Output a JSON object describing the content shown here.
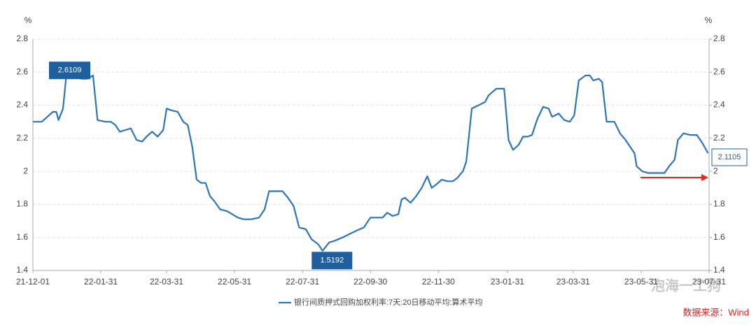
{
  "chart_data": {
    "type": "line",
    "y_unit": "%",
    "y2_unit": "%",
    "watermark": "泡海一工狗",
    "source": "数据来源：Wind",
    "x": [
      "2021-12-01",
      "2021-12-09",
      "2021-12-14",
      "2021-12-19",
      "2021-12-22",
      "2021-12-24",
      "2021-12-28",
      "2021-12-31",
      "2022-01-03",
      "2022-01-06",
      "2022-01-13",
      "2022-01-19",
      "2022-01-24",
      "2022-01-28",
      "2022-02-04",
      "2022-02-09",
      "2022-02-13",
      "2022-02-17",
      "2022-02-22",
      "2022-02-27",
      "2022-03-04",
      "2022-03-09",
      "2022-03-13",
      "2022-03-18",
      "2022-03-23",
      "2022-03-28",
      "2022-03-31",
      "2022-04-04",
      "2022-04-10",
      "2022-04-15",
      "2022-04-19",
      "2022-04-23",
      "2022-04-27",
      "2022-05-01",
      "2022-05-05",
      "2022-05-09",
      "2022-05-14",
      "2022-05-18",
      "2022-05-24",
      "2022-05-29",
      "2022-06-03",
      "2022-06-08",
      "2022-06-15",
      "2022-06-22",
      "2022-06-27",
      "2022-07-01",
      "2022-07-07",
      "2022-07-13",
      "2022-07-18",
      "2022-07-23",
      "2022-07-28",
      "2022-08-03",
      "2022-08-08",
      "2022-08-14",
      "2022-08-18",
      "2022-08-24",
      "2022-08-29",
      "2022-09-05",
      "2022-09-11",
      "2022-09-17",
      "2022-09-24",
      "2022-09-30",
      "2022-10-06",
      "2022-10-11",
      "2022-10-15",
      "2022-10-20",
      "2022-10-25",
      "2022-10-28",
      "2022-10-31",
      "2022-11-05",
      "2022-11-10",
      "2022-11-15",
      "2022-11-20",
      "2022-11-24",
      "2022-11-28",
      "2022-12-03",
      "2022-12-08",
      "2022-12-13",
      "2022-12-17",
      "2022-12-22",
      "2022-12-25",
      "2022-12-30",
      "2023-01-05",
      "2023-01-11",
      "2023-01-14",
      "2023-01-21",
      "2023-01-28",
      "2023-02-01",
      "2023-02-05",
      "2023-02-10",
      "2023-02-14",
      "2023-02-18",
      "2023-02-22",
      "2023-02-27",
      "2023-03-04",
      "2023-03-09",
      "2023-03-12",
      "2023-03-18",
      "2023-03-23",
      "2023-03-28",
      "2023-04-01",
      "2023-04-05",
      "2023-04-11",
      "2023-04-15",
      "2023-04-18",
      "2023-04-23",
      "2023-04-26",
      "2023-04-30",
      "2023-05-07",
      "2023-05-12",
      "2023-05-17",
      "2023-05-21",
      "2023-05-25",
      "2023-05-27",
      "2023-06-01",
      "2023-06-06",
      "2023-06-13",
      "2023-06-17",
      "2023-06-21",
      "2023-06-25",
      "2023-06-30",
      "2023-07-03",
      "2023-07-08",
      "2023-07-14",
      "2023-07-20",
      "2023-07-25",
      "2023-07-30"
    ],
    "series": [
      {
        "name": "银行间质押式回购加权利率:7天:20日移动平均:算术平均",
        "color": "#2e75b6",
        "values": [
          2.3,
          2.3,
          2.33,
          2.36,
          2.36,
          2.31,
          2.38,
          2.58,
          2.6109,
          2.61,
          2.56,
          2.56,
          2.58,
          2.31,
          2.3,
          2.3,
          2.28,
          2.24,
          2.25,
          2.26,
          2.19,
          2.18,
          2.21,
          2.24,
          2.21,
          2.25,
          2.38,
          2.37,
          2.36,
          2.3,
          2.28,
          2.15,
          1.95,
          1.93,
          1.93,
          1.85,
          1.81,
          1.77,
          1.76,
          1.74,
          1.72,
          1.71,
          1.71,
          1.72,
          1.77,
          1.88,
          1.88,
          1.88,
          1.84,
          1.79,
          1.66,
          1.65,
          1.59,
          1.56,
          1.5192,
          1.57,
          1.58,
          1.6,
          1.62,
          1.64,
          1.66,
          1.72,
          1.72,
          1.72,
          1.75,
          1.73,
          1.74,
          1.83,
          1.84,
          1.81,
          1.85,
          1.9,
          1.97,
          1.9,
          1.92,
          1.95,
          1.94,
          1.94,
          1.96,
          2.0,
          2.06,
          2.38,
          2.4,
          2.42,
          2.46,
          2.5,
          2.5,
          2.19,
          2.13,
          2.16,
          2.21,
          2.21,
          2.22,
          2.32,
          2.39,
          2.38,
          2.33,
          2.35,
          2.31,
          2.3,
          2.34,
          2.55,
          2.58,
          2.58,
          2.55,
          2.56,
          2.54,
          2.3,
          2.3,
          2.23,
          2.19,
          2.15,
          2.11,
          2.03,
          2.0,
          1.99,
          1.99,
          1.99,
          1.99,
          2.03,
          2.07,
          2.19,
          2.23,
          2.22,
          2.22,
          2.17,
          2.1105
        ]
      }
    ],
    "xlim": [
      "2021-12-01",
      "2023-07-31"
    ],
    "xticks": [
      {
        "value": "2021-12-01",
        "label": "21-12-01"
      },
      {
        "value": "2022-01-31",
        "label": "22-01-31"
      },
      {
        "value": "2022-03-31",
        "label": "22-03-31"
      },
      {
        "value": "2022-05-31",
        "label": "22-05-31"
      },
      {
        "value": "2022-07-31",
        "label": "22-07-31"
      },
      {
        "value": "2022-09-30",
        "label": "22-09-30"
      },
      {
        "value": "2022-11-30",
        "label": "22-11-30"
      },
      {
        "value": "2023-01-31",
        "label": "23-01-31"
      },
      {
        "value": "2023-03-31",
        "label": "23-03-31"
      },
      {
        "value": "2023-05-31",
        "label": "23-05-31"
      },
      {
        "value": "2023-07-31",
        "label": "23-07-31"
      }
    ],
    "ylim": [
      1.4,
      2.8
    ],
    "yticks": [
      1.4,
      1.6,
      1.8,
      2,
      2.2,
      2.4,
      2.6,
      2.8
    ],
    "y2lim": [
      1.4,
      2.8
    ],
    "y2ticks": [
      1.4,
      1.6,
      1.8,
      2,
      2.2,
      2.4,
      2.6,
      2.8
    ],
    "grid": true,
    "legend": "bottom"
  }
}
